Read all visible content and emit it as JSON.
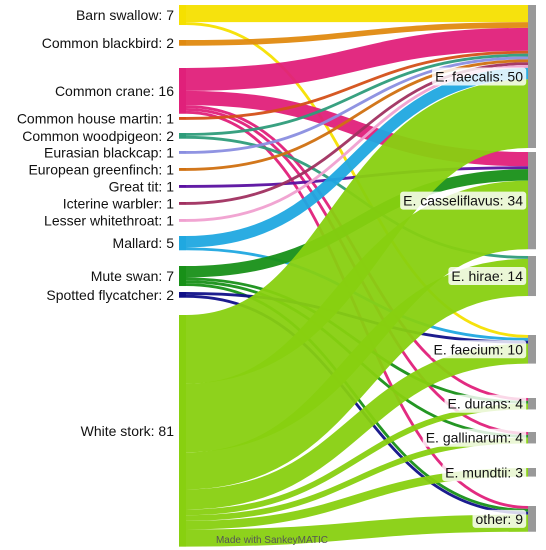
{
  "diagram": {
    "credit": "Made with SankeyMATIC",
    "sources": [
      {
        "name": "Barn swallow",
        "value": 7,
        "color": "#f5e000",
        "label": "Barn swallow: 7"
      },
      {
        "name": "Common blackbird",
        "value": 2,
        "color": "#e08a10",
        "label": "Common blackbird: 2"
      },
      {
        "name": "Common crane",
        "value": 16,
        "color": "#e0207a",
        "label": "Common crane: 16"
      },
      {
        "name": "Common house martin",
        "value": 1,
        "color": "#d45018",
        "label": "Common house martin: 1"
      },
      {
        "name": "Common woodpigeon",
        "value": 2,
        "color": "#2e9c7a",
        "label": "Common woodpigeon: 2"
      },
      {
        "name": "Eurasian blackcap",
        "value": 1,
        "color": "#8a8ee0",
        "label": "Eurasian blackcap: 1"
      },
      {
        "name": "European greenfinch",
        "value": 1,
        "color": "#d07010",
        "label": "European greenfinch: 1"
      },
      {
        "name": "Great tit",
        "value": 1,
        "color": "#5a10a0",
        "label": "Great tit: 1"
      },
      {
        "name": "Icterine warbler",
        "value": 1,
        "color": "#a03060",
        "label": "Icterine warbler: 1"
      },
      {
        "name": "Lesser whitethroat",
        "value": 1,
        "color": "#f0a0d0",
        "label": "Lesser whitethroat: 1"
      },
      {
        "name": "Mallard",
        "value": 5,
        "color": "#20a8e0",
        "label": "Mallard: 5"
      },
      {
        "name": "Mute swan",
        "value": 7,
        "color": "#189018",
        "label": "Mute swan: 7"
      },
      {
        "name": "Spotted flycatcher",
        "value": 2,
        "color": "#101088",
        "label": "Spotted flycatcher: 2"
      },
      {
        "name": "White stork",
        "value": 81,
        "color": "#88d010",
        "label": "White stork: 81"
      }
    ],
    "targets": [
      {
        "name": "E. faecalis",
        "value": 50,
        "label": "E. faecalis: 50"
      },
      {
        "name": "E. casseliflavus",
        "value": 34,
        "label": "E. casseliflavus: 34"
      },
      {
        "name": "E. hirae",
        "value": 14,
        "label": "E. hirae: 14"
      },
      {
        "name": "E. faecium",
        "value": 10,
        "label": "E. faecium: 10"
      },
      {
        "name": "E. durans",
        "value": 4,
        "label": "E. durans: 4"
      },
      {
        "name": "E. gallinarum",
        "value": 4,
        "label": "E. gallinarum: 4"
      },
      {
        "name": "E. mundtii",
        "value": 3,
        "label": "E. mundtii: 3"
      },
      {
        "name": "other",
        "value": 9,
        "label": "other: 9"
      }
    ],
    "target_node_color": "#999999",
    "flows": [
      [
        "Barn swallow",
        "E. faecalis",
        6
      ],
      [
        "Barn swallow",
        "E. faecium",
        1
      ],
      [
        "Common blackbird",
        "E. faecalis",
        2
      ],
      [
        "Common crane",
        "E. faecalis",
        8
      ],
      [
        "Common crane",
        "E. casseliflavus",
        5
      ],
      [
        "Common crane",
        "E. durans",
        1
      ],
      [
        "Common crane",
        "E. gallinarum",
        1
      ],
      [
        "Common crane",
        "other",
        1
      ],
      [
        "Common house martin",
        "E. faecalis",
        1
      ],
      [
        "Common woodpigeon",
        "E. faecalis",
        1
      ],
      [
        "Common woodpigeon",
        "E. hirae",
        1
      ],
      [
        "Eurasian blackcap",
        "E. faecalis",
        1
      ],
      [
        "European greenfinch",
        "E. faecalis",
        1
      ],
      [
        "Great tit",
        "E. casseliflavus",
        1
      ],
      [
        "Icterine warbler",
        "E. faecalis",
        1
      ],
      [
        "Lesser whitethroat",
        "E. faecalis",
        1
      ],
      [
        "Mallard",
        "E. faecalis",
        4
      ],
      [
        "Mallard",
        "E. faecium",
        1
      ],
      [
        "Mute swan",
        "E. casseliflavus",
        4
      ],
      [
        "Mute swan",
        "E. durans",
        1
      ],
      [
        "Mute swan",
        "E. gallinarum",
        1
      ],
      [
        "Mute swan",
        "other",
        1
      ],
      [
        "Spotted flycatcher",
        "E. faecium",
        1
      ],
      [
        "Spotted flycatcher",
        "other",
        1
      ],
      [
        "White stork",
        "E. faecalis",
        24
      ],
      [
        "White stork",
        "E. casseliflavus",
        24
      ],
      [
        "White stork",
        "E. hirae",
        13
      ],
      [
        "White stork",
        "E. faecium",
        7
      ],
      [
        "White stork",
        "E. durans",
        2
      ],
      [
        "White stork",
        "E. gallinarum",
        2
      ],
      [
        "White stork",
        "E. mundtii",
        3
      ],
      [
        "White stork",
        "other",
        6
      ]
    ]
  }
}
